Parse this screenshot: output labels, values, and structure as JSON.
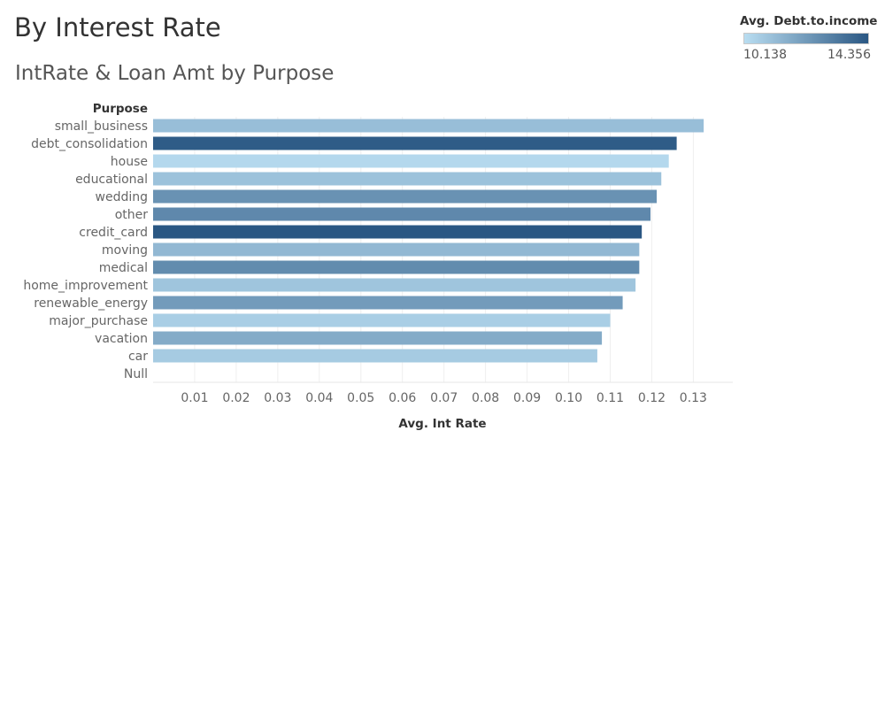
{
  "dashboard": {
    "title": "By Interest Rate"
  },
  "sheet": {
    "title": "IntRate & Loan Amt by Purpose"
  },
  "legend": {
    "title": "Avg. Debt.to.income",
    "min_label": "10.138",
    "max_label": "14.356",
    "min_value": 10.138,
    "max_value": 14.356,
    "color_low": "#b9ddf1",
    "color_high": "#2a5783"
  },
  "chart_data": {
    "type": "bar",
    "orientation": "horizontal",
    "row_header": "Purpose",
    "xlabel": "Avg. Int Rate",
    "xlim": [
      0,
      0.1395
    ],
    "xticks": [
      "0.01",
      "0.02",
      "0.03",
      "0.04",
      "0.05",
      "0.06",
      "0.07",
      "0.08",
      "0.09",
      "0.10",
      "0.11",
      "0.12",
      "0.13"
    ],
    "grid": true,
    "color_field": "Avg. Debt.to.income",
    "categories": [
      "small_business",
      "debt_consolidation",
      "house",
      "educational",
      "wedding",
      "other",
      "credit_card",
      "moving",
      "medical",
      "home_improvement",
      "renewable_energy",
      "major_purchase",
      "vacation",
      "car",
      "Null"
    ],
    "values": [
      0.1325,
      0.126,
      0.1241,
      0.1223,
      0.1212,
      0.1197,
      0.1176,
      0.117,
      0.117,
      0.1161,
      0.113,
      0.11,
      0.108,
      0.1069,
      null
    ],
    "color_values": [
      11.1,
      14.2,
      10.3,
      11.0,
      12.5,
      12.8,
      14.356,
      11.3,
      12.7,
      10.9,
      12.2,
      10.6,
      11.7,
      10.7,
      null
    ]
  }
}
